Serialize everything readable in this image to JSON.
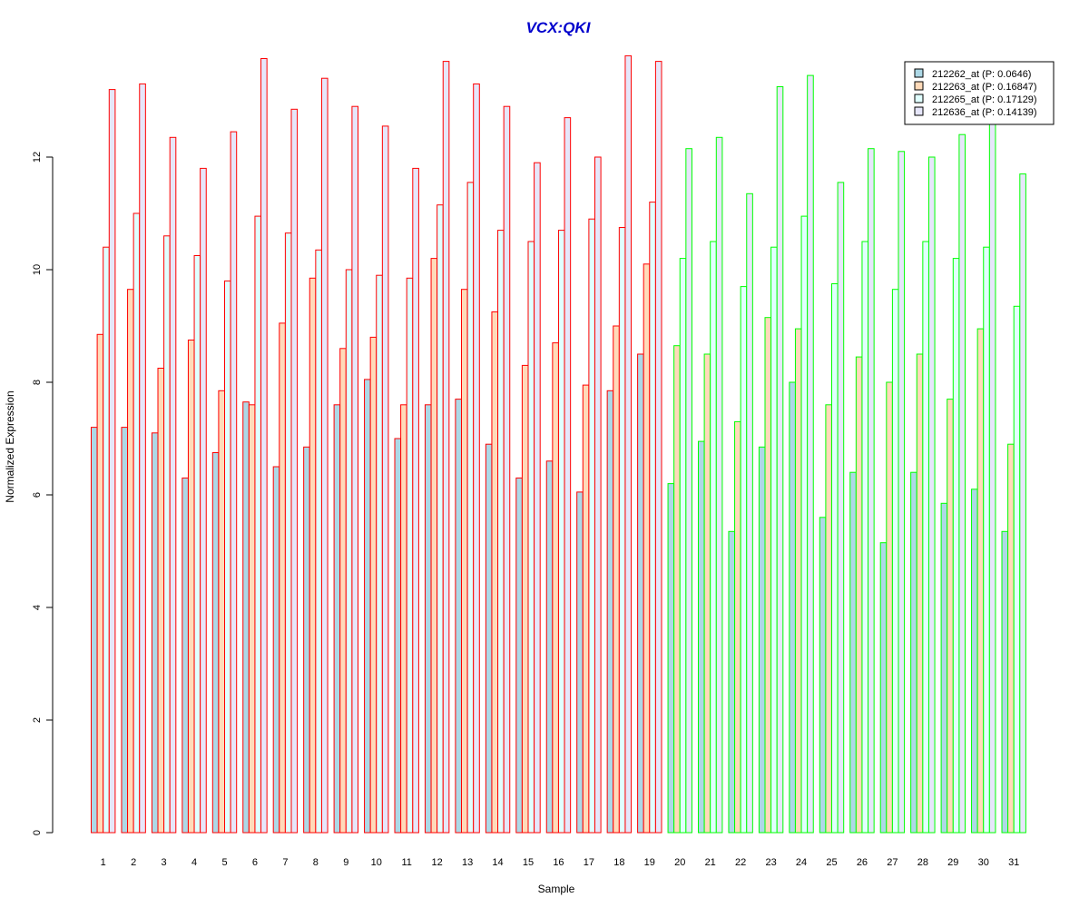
{
  "chart_data": {
    "type": "bar",
    "title": "VCX:QKI",
    "xlabel": "Sample",
    "ylabel": "Normalized Expression",
    "ylim": [
      0,
      14
    ],
    "yticks": [
      0,
      2,
      4,
      6,
      8,
      10,
      12
    ],
    "grid": false,
    "legend_position": "top-right",
    "categories": [
      "1",
      "2",
      "3",
      "4",
      "5",
      "6",
      "7",
      "8",
      "9",
      "10",
      "11",
      "12",
      "13",
      "14",
      "15",
      "16",
      "17",
      "18",
      "19",
      "20",
      "21",
      "22",
      "23",
      "24",
      "25",
      "26",
      "27",
      "28",
      "29",
      "30",
      "31"
    ],
    "groups": [
      {
        "samples": [
          1,
          2,
          3,
          4,
          5,
          6,
          7,
          8,
          9,
          10,
          11,
          12,
          13,
          14,
          15,
          16,
          17,
          18,
          19
        ],
        "border_color": "#ff0000"
      },
      {
        "samples": [
          20,
          21,
          22,
          23,
          24,
          25,
          26,
          27,
          28,
          29,
          30,
          31
        ],
        "border_color": "#00ff00"
      }
    ],
    "series": [
      {
        "name": "212262_at (P: 0.0646)",
        "fill": "#add8e6",
        "values": [
          7.2,
          7.2,
          7.1,
          6.3,
          6.75,
          7.65,
          6.5,
          6.85,
          7.6,
          8.05,
          7.0,
          7.6,
          7.7,
          6.9,
          6.3,
          6.6,
          6.05,
          7.85,
          8.5,
          6.2,
          6.95,
          5.35,
          6.85,
          8.0,
          5.6,
          6.4,
          5.15,
          6.4,
          5.85,
          6.1,
          5.35
        ]
      },
      {
        "name": "212263_at (P: 0.16847)",
        "fill": "#ffdab9",
        "values": [
          8.85,
          9.65,
          8.25,
          8.75,
          7.85,
          7.6,
          9.05,
          9.85,
          8.6,
          8.8,
          7.6,
          10.2,
          9.65,
          9.25,
          8.3,
          8.7,
          7.95,
          9.0,
          10.1,
          8.65,
          8.5,
          7.3,
          9.15,
          8.95,
          7.6,
          8.45,
          8.0,
          8.5,
          7.7,
          8.95,
          6.9
        ]
      },
      {
        "name": "212265_at (P: 0.17129)",
        "fill": "#e0ffff",
        "values": [
          10.4,
          11.0,
          10.6,
          10.25,
          9.8,
          10.95,
          10.65,
          10.35,
          10.0,
          9.9,
          9.85,
          11.15,
          11.55,
          10.7,
          10.5,
          10.7,
          10.9,
          10.75,
          11.2,
          10.2,
          10.5,
          9.7,
          10.4,
          10.95,
          9.75,
          10.5,
          9.65,
          10.5,
          10.2,
          10.4,
          9.35
        ]
      },
      {
        "name": "212636_at (P: 0.14139)",
        "fill": "#e6e6fa",
        "values": [
          13.2,
          13.3,
          12.35,
          11.8,
          12.45,
          13.75,
          12.85,
          13.4,
          12.9,
          12.55,
          11.8,
          13.7,
          13.3,
          12.9,
          11.9,
          12.7,
          12.0,
          13.8,
          13.7,
          12.15,
          12.35,
          11.35,
          13.25,
          13.45,
          11.55,
          12.15,
          12.1,
          12.0,
          12.4,
          12.6,
          11.7
        ]
      }
    ]
  }
}
